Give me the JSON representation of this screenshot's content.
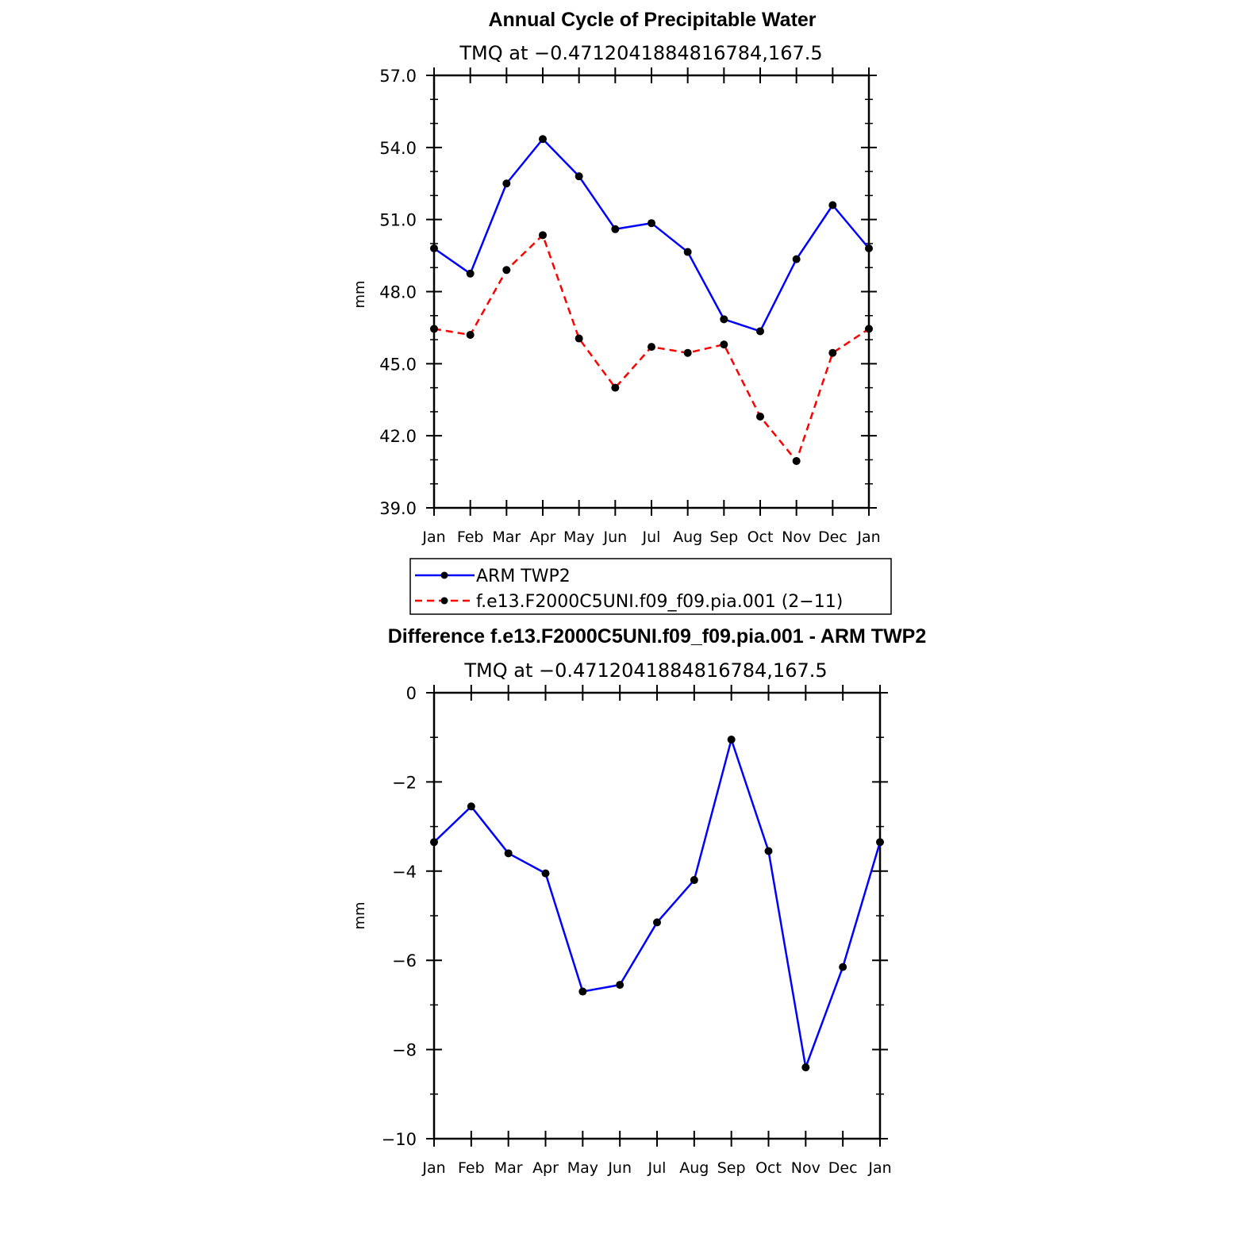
{
  "chart_data": [
    {
      "type": "line",
      "title": "Annual Cycle of Precipitable Water",
      "subtitle": "TMQ at −0.4712041884816784,167.5",
      "ylabel": "mm",
      "xlabel": "",
      "ylim": [
        39.0,
        57.0
      ],
      "yticks": [
        39.0,
        42.0,
        45.0,
        48.0,
        51.0,
        54.0,
        57.0
      ],
      "ytick_labels": [
        "39.0",
        "42.0",
        "45.0",
        "48.0",
        "51.0",
        "54.0",
        "57.0"
      ],
      "categories": [
        "Jan",
        "Feb",
        "Mar",
        "Apr",
        "May",
        "Jun",
        "Jul",
        "Aug",
        "Sep",
        "Oct",
        "Nov",
        "Dec",
        "Jan"
      ],
      "series": [
        {
          "name": "ARM TWP2",
          "color": "#0000ff",
          "dash": "solid",
          "values": [
            49.8,
            48.75,
            52.5,
            54.35,
            52.8,
            50.6,
            50.85,
            49.65,
            46.85,
            46.35,
            49.35,
            51.6,
            49.8
          ]
        },
        {
          "name": "f.e13.F2000C5UNI.f09_f09.pia.001 (2−11)",
          "color": "#ff0000",
          "dash": "dashed",
          "values": [
            46.45,
            46.2,
            48.9,
            50.35,
            46.05,
            44.0,
            45.7,
            45.45,
            45.8,
            42.8,
            40.95,
            45.45,
            46.45
          ]
        }
      ]
    },
    {
      "type": "line",
      "title": "Difference f.e13.F2000C5UNI.f09_f09.pia.001 - ARM TWP2",
      "subtitle": "TMQ at −0.4712041884816784,167.5",
      "ylabel": "mm",
      "xlabel": "",
      "ylim": [
        -10,
        0
      ],
      "yticks": [
        -10,
        -8,
        -6,
        -4,
        -2,
        0
      ],
      "ytick_labels": [
        "−10",
        "−8",
        "−6",
        "−4",
        "−2",
        "0"
      ],
      "categories": [
        "Jan",
        "Feb",
        "Mar",
        "Apr",
        "May",
        "Jun",
        "Jul",
        "Aug",
        "Sep",
        "Oct",
        "Nov",
        "Dec",
        "Jan"
      ],
      "series": [
        {
          "name": "Difference",
          "color": "#0000ff",
          "dash": "solid",
          "values": [
            -3.35,
            -2.55,
            -3.6,
            -4.05,
            -6.7,
            -6.55,
            -5.15,
            -4.2,
            -1.05,
            -3.55,
            -8.4,
            -6.15,
            -3.35
          ]
        }
      ]
    }
  ]
}
